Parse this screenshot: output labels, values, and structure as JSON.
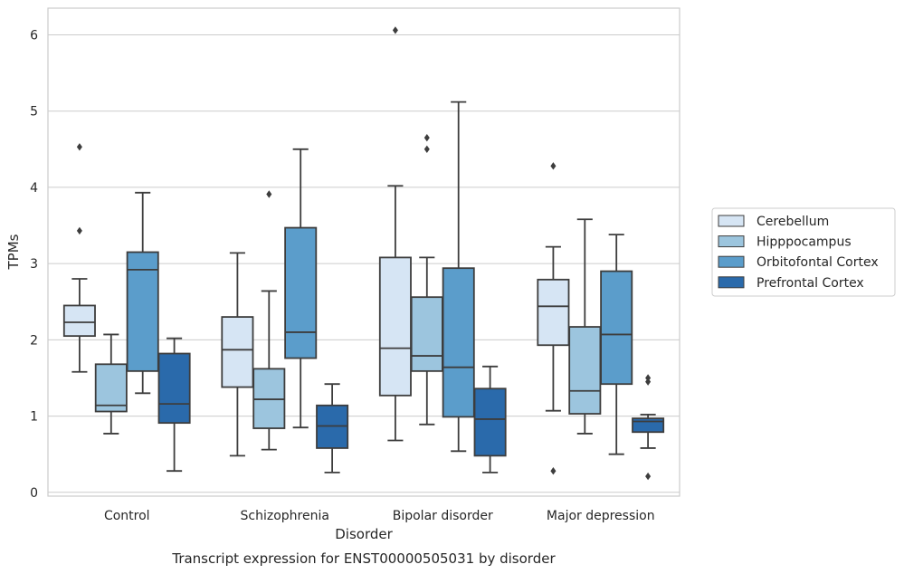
{
  "chart_data": {
    "type": "box",
    "title": "Transcript expression for ENST00000505031 by disorder",
    "xlabel": "Disorder",
    "ylabel": "TPMs",
    "categories": [
      "Control",
      "Schizophrenia",
      "Bipolar disorder",
      "Major depression"
    ],
    "ylim": [
      -0.05,
      6.35
    ],
    "yticks": [
      0,
      1,
      2,
      3,
      4,
      5,
      6
    ],
    "grid": true,
    "legend_position": "right",
    "series": [
      {
        "name": "Cerebellum",
        "color": "#d6e5f4",
        "boxes": [
          {
            "whisker_low": 1.58,
            "q1": 2.05,
            "median": 2.23,
            "q3": 2.45,
            "whisker_high": 2.8,
            "outliers": [
              4.53,
              3.43
            ]
          },
          {
            "whisker_low": 0.48,
            "q1": 1.38,
            "median": 1.87,
            "q3": 2.3,
            "whisker_high": 3.14,
            "outliers": []
          },
          {
            "whisker_low": 0.68,
            "q1": 1.27,
            "median": 1.89,
            "q3": 3.08,
            "whisker_high": 4.02,
            "outliers": [
              6.06
            ]
          },
          {
            "whisker_low": 1.07,
            "q1": 1.93,
            "median": 2.44,
            "q3": 2.79,
            "whisker_high": 3.22,
            "outliers": [
              4.28,
              0.28
            ]
          }
        ]
      },
      {
        "name": "Hipppocampus",
        "color": "#9cc5de",
        "boxes": [
          {
            "whisker_low": 0.77,
            "q1": 1.06,
            "median": 1.14,
            "q3": 1.68,
            "whisker_high": 2.07,
            "outliers": []
          },
          {
            "whisker_low": 0.56,
            "q1": 0.84,
            "median": 1.22,
            "q3": 1.62,
            "whisker_high": 2.64,
            "outliers": [
              3.91
            ]
          },
          {
            "whisker_low": 0.89,
            "q1": 1.59,
            "median": 1.79,
            "q3": 2.56,
            "whisker_high": 3.08,
            "outliers": [
              4.65,
              4.5
            ]
          },
          {
            "whisker_low": 0.77,
            "q1": 1.03,
            "median": 1.33,
            "q3": 2.17,
            "whisker_high": 3.58,
            "outliers": []
          }
        ]
      },
      {
        "name": "Orbitofontal Cortex",
        "color": "#5b9dcb",
        "boxes": [
          {
            "whisker_low": 1.3,
            "q1": 1.59,
            "median": 2.92,
            "q3": 3.15,
            "whisker_high": 3.93,
            "outliers": []
          },
          {
            "whisker_low": 0.85,
            "q1": 1.76,
            "median": 2.1,
            "q3": 3.47,
            "whisker_high": 4.5,
            "outliers": []
          },
          {
            "whisker_low": 0.54,
            "q1": 0.99,
            "median": 1.64,
            "q3": 2.94,
            "whisker_high": 5.12,
            "outliers": []
          },
          {
            "whisker_low": 0.5,
            "q1": 1.42,
            "median": 2.07,
            "q3": 2.9,
            "whisker_high": 3.38,
            "outliers": []
          }
        ]
      },
      {
        "name": "Prefrontal Cortex",
        "color": "#2a6aab",
        "boxes": [
          {
            "whisker_low": 0.28,
            "q1": 0.91,
            "median": 1.16,
            "q3": 1.82,
            "whisker_high": 2.02,
            "outliers": []
          },
          {
            "whisker_low": 0.26,
            "q1": 0.58,
            "median": 0.87,
            "q3": 1.14,
            "whisker_high": 1.42,
            "outliers": []
          },
          {
            "whisker_low": 0.26,
            "q1": 0.48,
            "median": 0.96,
            "q3": 1.36,
            "whisker_high": 1.65,
            "outliers": []
          },
          {
            "whisker_low": 0.58,
            "q1": 0.79,
            "median": 0.93,
            "q3": 0.97,
            "whisker_high": 1.02,
            "outliers": [
              1.5,
              1.45,
              0.21
            ]
          }
        ]
      }
    ]
  }
}
